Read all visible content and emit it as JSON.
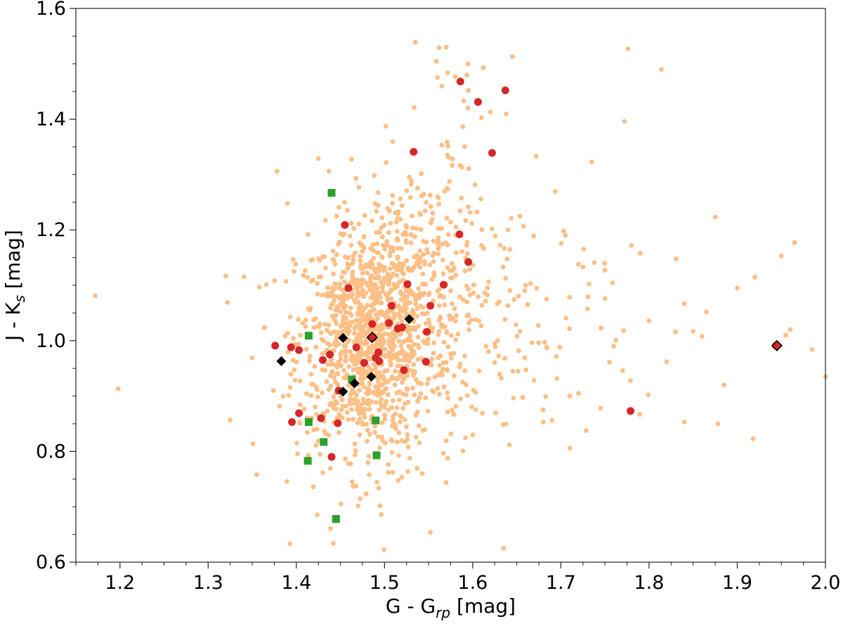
{
  "chart_data": {
    "type": "scatter",
    "title": "",
    "xlabel": "G - Grp [mag]",
    "ylabel": "J - Ks [mag]",
    "xlim": [
      1.15,
      2.0
    ],
    "ylim": [
      0.6,
      1.6
    ],
    "xticks": [
      1.2,
      1.3,
      1.4,
      1.5,
      1.6,
      1.7,
      1.8,
      1.9,
      2.0
    ],
    "yticks": [
      0.6,
      0.8,
      1.0,
      1.2,
      1.4,
      1.6
    ],
    "xtick_labels": [
      "1.2",
      "1.3",
      "1.4",
      "1.5",
      "1.6",
      "1.7",
      "1.8",
      "1.9",
      "2.0"
    ],
    "ytick_labels": [
      "0.6",
      "0.8",
      "1.0",
      "1.2",
      "1.4",
      "1.6"
    ],
    "grid": false,
    "legend": "none",
    "colors": {
      "background": "#fdbf85",
      "red": "#d62728",
      "green": "#2ca02c",
      "black": "#000000"
    },
    "series": [
      {
        "marker": "circle",
        "color": "#fdbf85",
        "background_cloud": {
          "approx_count": 1500,
          "core_center": [
            1.48,
            1.0
          ],
          "core_spread": [
            0.04,
            0.1
          ]
        },
        "points": [
          [
            1.172,
            1.081
          ],
          [
            1.198,
            0.913
          ],
          [
            1.32,
            1.117
          ],
          [
            1.322,
            1.069
          ],
          [
            1.325,
            0.857
          ],
          [
            1.355,
            0.758
          ],
          [
            1.35,
            0.969
          ],
          [
            1.358,
            1.097
          ],
          [
            1.378,
            1.306
          ],
          [
            1.39,
            1.248
          ],
          [
            1.425,
            1.329
          ],
          [
            1.437,
            1.306
          ],
          [
            1.535,
            1.539
          ],
          [
            1.552,
            0.654
          ],
          [
            1.562,
            1.529
          ],
          [
            1.57,
            1.53
          ],
          [
            1.58,
            1.477
          ],
          [
            1.595,
            1.5
          ],
          [
            1.612,
            1.493
          ],
          [
            1.645,
            1.513
          ],
          [
            1.56,
            1.475
          ],
          [
            1.565,
            1.46
          ],
          [
            1.59,
            1.433
          ],
          [
            1.61,
            1.403
          ],
          [
            1.62,
            1.413
          ],
          [
            1.6,
            0.83
          ],
          [
            1.64,
            1.2
          ],
          [
            1.66,
            1.1
          ],
          [
            1.672,
            1.333
          ],
          [
            1.68,
            0.853
          ],
          [
            1.69,
            0.856
          ],
          [
            1.705,
            1.19
          ],
          [
            1.725,
            1.133
          ],
          [
            1.735,
            1.323
          ],
          [
            1.745,
            0.878
          ],
          [
            1.75,
            1.076
          ],
          [
            1.76,
            0.99
          ],
          [
            1.772,
            1.396
          ],
          [
            1.776,
            1.527
          ],
          [
            1.78,
            1.172
          ],
          [
            1.79,
            1.158
          ],
          [
            1.8,
            1.036
          ],
          [
            1.814,
            1.49
          ],
          [
            1.82,
            0.962
          ],
          [
            1.83,
            1.016
          ],
          [
            1.84,
            0.853
          ],
          [
            1.84,
            1.067
          ],
          [
            1.85,
            1.017
          ],
          [
            1.86,
            1.008
          ],
          [
            1.865,
            1.052
          ],
          [
            1.875,
            1.223
          ],
          [
            1.878,
            0.85
          ],
          [
            1.885,
            0.92
          ],
          [
            1.9,
            1.095
          ],
          [
            1.918,
            0.823
          ],
          [
            1.92,
            1.115
          ],
          [
            1.95,
            1.153
          ],
          [
            1.955,
            1.01
          ],
          [
            1.96,
            1.02
          ],
          [
            1.965,
            1.177
          ],
          [
            1.985,
            0.984
          ],
          [
            2.0,
            0.935
          ],
          [
            1.72,
            0.905
          ],
          [
            1.71,
            0.9
          ],
          [
            1.77,
            0.946
          ],
          [
            1.635,
            0.625
          ],
          [
            1.442,
            0.634
          ],
          [
            1.495,
            0.702
          ]
        ]
      },
      {
        "marker": "circle",
        "color": "#d62728",
        "points": [
          [
            1.376,
            0.991
          ],
          [
            1.394,
            0.988
          ],
          [
            1.403,
            0.983
          ],
          [
            1.403,
            0.869
          ],
          [
            1.395,
            0.853
          ],
          [
            1.428,
            0.86
          ],
          [
            1.43,
            0.965
          ],
          [
            1.438,
            0.975
          ],
          [
            1.44,
            0.79
          ],
          [
            1.447,
            0.851
          ],
          [
            1.448,
            0.91
          ],
          [
            1.455,
            1.209
          ],
          [
            1.459,
            1.095
          ],
          [
            1.468,
            0.988
          ],
          [
            1.477,
            0.96
          ],
          [
            1.486,
            1.03
          ],
          [
            1.487,
            1.006
          ],
          [
            1.49,
            0.969
          ],
          [
            1.493,
            0.979
          ],
          [
            1.494,
            0.963
          ],
          [
            1.505,
            1.032
          ],
          [
            1.508,
            1.063
          ],
          [
            1.515,
            1.022
          ],
          [
            1.52,
            1.024
          ],
          [
            1.522,
            0.947
          ],
          [
            1.526,
            1.102
          ],
          [
            1.533,
            1.341
          ],
          [
            1.547,
            0.962
          ],
          [
            1.548,
            1.016
          ],
          [
            1.552,
            1.063
          ],
          [
            1.567,
            1.101
          ],
          [
            1.585,
            1.192
          ],
          [
            1.586,
            1.468
          ],
          [
            1.595,
            1.142
          ],
          [
            1.606,
            1.431
          ],
          [
            1.622,
            1.339
          ],
          [
            1.637,
            1.452
          ],
          [
            1.779,
            0.873
          ],
          [
            1.944,
            0.991
          ]
        ]
      },
      {
        "marker": "square",
        "color": "#2ca02c",
        "points": [
          [
            1.44,
            1.267
          ],
          [
            1.414,
            1.009
          ],
          [
            1.414,
            0.853
          ],
          [
            1.431,
            0.817
          ],
          [
            1.413,
            0.783
          ],
          [
            1.445,
            0.678
          ],
          [
            1.463,
            0.93
          ],
          [
            1.49,
            0.856
          ],
          [
            1.491,
            0.793
          ]
        ]
      },
      {
        "marker": "diamond",
        "color": "#000000",
        "points": [
          [
            1.383,
            0.963
          ],
          [
            1.453,
            1.005
          ],
          [
            1.453,
            0.908
          ],
          [
            1.466,
            0.923
          ],
          [
            1.485,
            0.935
          ],
          [
            1.528,
            1.039
          ],
          [
            1.486,
            1.006
          ],
          [
            1.945,
            0.991
          ]
        ]
      }
    ]
  }
}
